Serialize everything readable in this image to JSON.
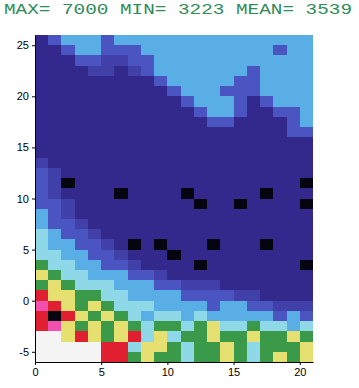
{
  "chart_data": {
    "type": "heatmap",
    "title": "MAX= 7000  MIN= 3223  MEAN= 3539",
    "xlim": [
      0,
      21
    ],
    "ylim": [
      -6,
      26
    ],
    "xticks": [
      0,
      5,
      10,
      15,
      20
    ],
    "yticks": [
      -5,
      0,
      5,
      10,
      15,
      20,
      25
    ],
    "x_edges": [
      0,
      1,
      2,
      3,
      4,
      5,
      6,
      7,
      8,
      9,
      10,
      11,
      12,
      13,
      14,
      15,
      16,
      17,
      18,
      19,
      20,
      21
    ],
    "y_edges": [
      -6,
      -5,
      -4,
      -3,
      -2,
      -1,
      0,
      1,
      2,
      3,
      4,
      5,
      6,
      7,
      8,
      9,
      10,
      11,
      12,
      13,
      14,
      15,
      16,
      17,
      18,
      19,
      20,
      21,
      22,
      23,
      24,
      25,
      26
    ],
    "z": [
      [
        7000,
        7000,
        7000,
        7000,
        7000,
        5400,
        5400,
        4050,
        4500,
        4050,
        4050,
        3780,
        4050,
        4050,
        4500,
        4050,
        3780,
        4050,
        4500,
        4050,
        4500
      ],
      [
        7000,
        7000,
        7000,
        7000,
        7000,
        5400,
        5400,
        3780,
        4500,
        4500,
        4050,
        3780,
        4050,
        4050,
        4500,
        4050,
        3780,
        4050,
        4050,
        4050,
        4500
      ],
      [
        7000,
        7000,
        4500,
        5400,
        4500,
        4050,
        4500,
        5400,
        3780,
        4500,
        3780,
        4050,
        4050,
        4500,
        4050,
        4050,
        4500,
        4050,
        4050,
        4500,
        4050
      ],
      [
        5400,
        6000,
        4500,
        4050,
        4500,
        4050,
        4500,
        4050,
        3780,
        4050,
        4050,
        3780,
        4050,
        4500,
        3780,
        3780,
        4050,
        3780,
        3780,
        3600,
        3780
      ],
      [
        5400,
        3223,
        5400,
        4500,
        4050,
        4500,
        4050,
        3780,
        3600,
        3780,
        3780,
        3600,
        3780,
        3600,
        3600,
        3600,
        3600,
        3600,
        3450,
        3600,
        3450
      ],
      [
        6000,
        5400,
        4500,
        4050,
        4500,
        4050,
        3780,
        3780,
        3780,
        3600,
        3600,
        3600,
        3600,
        3450,
        3600,
        3600,
        3450,
        3450,
        3380,
        3380,
        3380
      ],
      [
        5400,
        4500,
        4500,
        4050,
        4050,
        3780,
        3780,
        3600,
        3600,
        3600,
        3600,
        3450,
        3450,
        3450,
        3450,
        3380,
        3380,
        3300,
        3300,
        3300,
        3300
      ],
      [
        4050,
        4500,
        4050,
        3780,
        3780,
        3780,
        3600,
        3600,
        3600,
        3450,
        3450,
        3380,
        3380,
        3380,
        3300,
        3300,
        3300,
        3300,
        3300,
        3300,
        3300
      ],
      [
        4500,
        4050,
        3780,
        3780,
        3600,
        3600,
        3600,
        3450,
        3450,
        3380,
        3300,
        3300,
        3300,
        3300,
        3300,
        3300,
        3300,
        3300,
        3300,
        3300,
        3300
      ],
      [
        4050,
        3780,
        3780,
        3600,
        3600,
        3450,
        3450,
        3380,
        3300,
        3300,
        3300,
        3300,
        3223,
        3300,
        3300,
        3300,
        3300,
        3300,
        3300,
        3300,
        3223
      ],
      [
        3780,
        3780,
        3600,
        3600,
        3450,
        3450,
        3380,
        3300,
        3300,
        3300,
        3223,
        3300,
        3300,
        3300,
        3300,
        3300,
        3300,
        3300,
        3300,
        3300,
        3300
      ],
      [
        3780,
        3600,
        3600,
        3450,
        3450,
        3380,
        3300,
        3223,
        3300,
        3223,
        3300,
        3300,
        3300,
        3223,
        3300,
        3300,
        3300,
        3223,
        3300,
        3300,
        3300
      ],
      [
        3780,
        3600,
        3450,
        3450,
        3380,
        3300,
        3300,
        3300,
        3300,
        3300,
        3300,
        3300,
        3300,
        3300,
        3300,
        3300,
        3300,
        3300,
        3300,
        3300,
        3300
      ],
      [
        3600,
        3450,
        3450,
        3380,
        3300,
        3300,
        3300,
        3300,
        3300,
        3300,
        3300,
        3300,
        3300,
        3300,
        3300,
        3300,
        3300,
        3300,
        3300,
        3300,
        3300
      ],
      [
        3600,
        3450,
        3380,
        3300,
        3300,
        3300,
        3300,
        3300,
        3300,
        3300,
        3300,
        3300,
        3300,
        3300,
        3300,
        3300,
        3300,
        3300,
        3300,
        3300,
        3300
      ],
      [
        3450,
        3450,
        3380,
        3300,
        3300,
        3300,
        3300,
        3300,
        3300,
        3300,
        3300,
        3300,
        3223,
        3300,
        3300,
        3223,
        3300,
        3300,
        3300,
        3300,
        3223
      ],
      [
        3450,
        3380,
        3300,
        3300,
        3300,
        3300,
        3223,
        3300,
        3300,
        3300,
        3300,
        3223,
        3300,
        3300,
        3300,
        3300,
        3300,
        3223,
        3300,
        3300,
        3300
      ],
      [
        3450,
        3380,
        3223,
        3300,
        3300,
        3300,
        3300,
        3300,
        3300,
        3300,
        3300,
        3300,
        3300,
        3300,
        3300,
        3300,
        3300,
        3300,
        3300,
        3300,
        3223
      ],
      [
        3450,
        3380,
        3300,
        3300,
        3300,
        3300,
        3300,
        3300,
        3300,
        3300,
        3300,
        3300,
        3300,
        3300,
        3300,
        3300,
        3300,
        3300,
        3300,
        3300,
        3300
      ],
      [
        3380,
        3300,
        3300,
        3300,
        3300,
        3300,
        3300,
        3300,
        3300,
        3300,
        3300,
        3300,
        3300,
        3300,
        3300,
        3300,
        3300,
        3300,
        3300,
        3300,
        3300
      ],
      [
        3300,
        3300,
        3300,
        3300,
        3300,
        3300,
        3300,
        3300,
        3300,
        3300,
        3300,
        3300,
        3300,
        3300,
        3300,
        3300,
        3300,
        3300,
        3300,
        3300,
        3300
      ],
      [
        3300,
        3300,
        3300,
        3300,
        3300,
        3300,
        3300,
        3300,
        3300,
        3300,
        3300,
        3300,
        3300,
        3300,
        3300,
        3300,
        3300,
        3300,
        3300,
        3300,
        3300
      ],
      [
        3300,
        3300,
        3300,
        3300,
        3300,
        3300,
        3300,
        3300,
        3300,
        3300,
        3300,
        3300,
        3300,
        3300,
        3300,
        3300,
        3300,
        3300,
        3300,
        3450,
        3450
      ],
      [
        3300,
        3300,
        3300,
        3300,
        3300,
        3300,
        3300,
        3300,
        3300,
        3300,
        3300,
        3300,
        3300,
        3450,
        3450,
        3300,
        3300,
        3300,
        3300,
        3450,
        3600
      ],
      [
        3300,
        3300,
        3300,
        3300,
        3300,
        3300,
        3300,
        3300,
        3300,
        3300,
        3300,
        3300,
        3450,
        3600,
        3600,
        3450,
        3300,
        3300,
        3450,
        3450,
        3600
      ],
      [
        3300,
        3300,
        3300,
        3300,
        3300,
        3300,
        3300,
        3300,
        3300,
        3300,
        3300,
        3450,
        3600,
        3600,
        3600,
        3450,
        3300,
        3450,
        3600,
        3600,
        3600
      ],
      [
        3300,
        3300,
        3300,
        3300,
        3300,
        3300,
        3300,
        3300,
        3300,
        3300,
        3450,
        3600,
        3600,
        3600,
        3450,
        3450,
        3450,
        3600,
        3600,
        3600,
        3600
      ],
      [
        3300,
        3300,
        3300,
        3300,
        3300,
        3300,
        3300,
        3300,
        3300,
        3450,
        3600,
        3600,
        3600,
        3600,
        3600,
        3450,
        3450,
        3600,
        3600,
        3600,
        3600
      ],
      [
        3300,
        3300,
        3300,
        3300,
        3380,
        3380,
        3300,
        3380,
        3450,
        3600,
        3600,
        3600,
        3600,
        3600,
        3600,
        3600,
        3450,
        3600,
        3600,
        3600,
        3600
      ],
      [
        3300,
        3300,
        3300,
        3450,
        3450,
        3380,
        3380,
        3450,
        3450,
        3600,
        3600,
        3600,
        3600,
        3600,
        3600,
        3600,
        3600,
        3600,
        3600,
        3600,
        3600
      ],
      [
        3300,
        3300,
        3450,
        3600,
        3600,
        3450,
        3450,
        3450,
        3600,
        3600,
        3600,
        3600,
        3600,
        3600,
        3600,
        3600,
        3600,
        3600,
        3450,
        3600,
        3600
      ],
      [
        3300,
        3450,
        3600,
        3600,
        3600,
        3450,
        3600,
        3600,
        3600,
        3600,
        3600,
        3600,
        3600,
        3600,
        3600,
        3600,
        3600,
        3600,
        3600,
        3600,
        3600
      ]
    ]
  }
}
